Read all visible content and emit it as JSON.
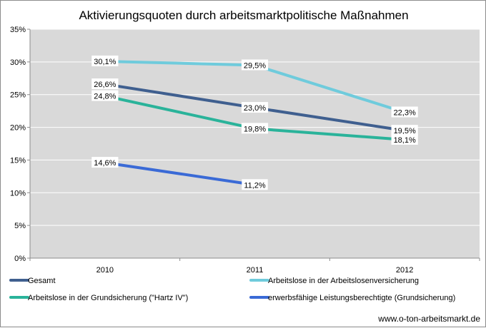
{
  "chart_data": {
    "type": "line",
    "title": "Aktivierungsquoten durch arbeitsmarktpolitische Maßnahmen",
    "categories": [
      "2010",
      "2011",
      "2012"
    ],
    "ylim": [
      0,
      35
    ],
    "y_ticks": [
      0,
      5,
      10,
      15,
      20,
      25,
      30,
      35
    ],
    "y_tick_labels": [
      "0%",
      "5%",
      "10%",
      "15%",
      "20%",
      "25%",
      "30%",
      "35%"
    ],
    "grid": true,
    "xlabel": "",
    "ylabel": "",
    "legend_position": "bottom",
    "series": [
      {
        "name": "Gesamt",
        "color": "#3f5f8f",
        "values": [
          26.6,
          23.0,
          19.5
        ],
        "labels": [
          "26,6%",
          "23,0%",
          "19,5%"
        ]
      },
      {
        "name": "Arbeitslose in der Arbeitslosenversicherung",
        "color": "#6fcbdc",
        "values": [
          30.1,
          29.5,
          22.3
        ],
        "labels": [
          "30,1%",
          "29,5%",
          "22,3%"
        ]
      },
      {
        "name": "Arbeitslose in der Grundsicherung (\"Hartz IV\")",
        "color": "#2ab39a",
        "values": [
          24.8,
          19.8,
          18.1
        ],
        "labels": [
          "24,8%",
          "19,8%",
          "18,1%"
        ]
      },
      {
        "name": "erwerbsfähige Leistungsberechtigte (Grundsicherung)",
        "color": "#3a6ad6",
        "values": [
          14.6,
          11.2,
          null
        ],
        "labels": [
          "14,6%",
          "11,2%",
          null
        ]
      }
    ]
  },
  "colors": {
    "plot_background": "#d9d9d9",
    "grid": "#ffffff"
  },
  "source": "www.o-ton-arbeitsmarkt.de"
}
